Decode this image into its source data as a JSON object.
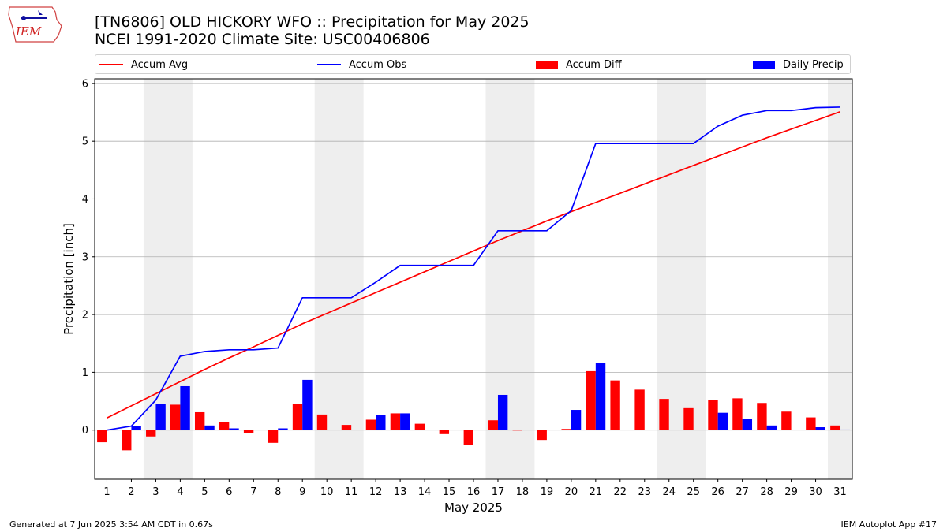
{
  "title": "[TN6806] OLD HICKORY WFO :: Precipitation for May 2025",
  "subtitle": "NCEI 1991-2020 Climate Site: USC00406806",
  "logo_text": "IEM",
  "footer_left": "Generated at 7 Jun 2025 3:54 AM CDT in 0.67s",
  "footer_right": "IEM Autoplot App #17",
  "legend": [
    {
      "label": "Accum Avg",
      "kind": "line",
      "color": "#ff0000"
    },
    {
      "label": "Accum Obs",
      "kind": "line",
      "color": "#0000ff"
    },
    {
      "label": "Accum Diff",
      "kind": "patch",
      "color": "#ff0000"
    },
    {
      "label": "Daily Precip",
      "kind": "patch",
      "color": "#0000ff"
    }
  ],
  "chart_data": {
    "type": "bar",
    "xlabel": "May 2025",
    "ylabel": "Precipitation [inch]",
    "xlim": [
      0.5,
      31.5
    ],
    "ylim": [
      -0.85,
      6.08
    ],
    "xticks": [
      1,
      2,
      3,
      4,
      5,
      6,
      7,
      8,
      9,
      10,
      11,
      12,
      13,
      14,
      15,
      16,
      17,
      18,
      19,
      20,
      21,
      22,
      23,
      24,
      25,
      26,
      27,
      28,
      29,
      30,
      31
    ],
    "yticks": [
      0,
      1,
      2,
      3,
      4,
      5,
      6
    ],
    "grid": "horizontal",
    "legend_position": "top",
    "weekend_shading": [
      [
        2.5,
        4.5
      ],
      [
        9.5,
        11.5
      ],
      [
        16.5,
        18.5
      ],
      [
        23.5,
        25.5
      ],
      [
        30.5,
        31.5
      ]
    ],
    "days": [
      1,
      2,
      3,
      4,
      5,
      6,
      7,
      8,
      9,
      10,
      11,
      12,
      13,
      14,
      15,
      16,
      17,
      18,
      19,
      20,
      21,
      22,
      23,
      24,
      25,
      26,
      27,
      28,
      29,
      30,
      31
    ],
    "series": [
      {
        "name": "Accum Avg",
        "type": "line",
        "color": "#ff0000",
        "values": [
          0.21,
          0.42,
          0.63,
          0.84,
          1.05,
          1.25,
          1.44,
          1.64,
          1.84,
          2.02,
          2.2,
          2.38,
          2.56,
          2.74,
          2.92,
          3.1,
          3.28,
          3.45,
          3.62,
          3.78,
          3.94,
          4.1,
          4.26,
          4.42,
          4.58,
          4.74,
          4.9,
          5.06,
          5.21,
          5.36,
          5.51
        ]
      },
      {
        "name": "Accum Obs",
        "type": "line",
        "color": "#0000ff",
        "values": [
          0.0,
          0.07,
          0.52,
          1.28,
          1.36,
          1.39,
          1.39,
          1.42,
          2.29,
          2.29,
          2.29,
          2.56,
          2.85,
          2.85,
          2.85,
          2.85,
          3.45,
          3.45,
          3.45,
          3.8,
          4.96,
          4.96,
          4.96,
          4.96,
          4.96,
          5.26,
          5.45,
          5.53,
          5.53,
          5.58,
          5.59
        ]
      },
      {
        "name": "Accum Diff",
        "type": "bar",
        "color": "#ff0000",
        "values": [
          -0.21,
          -0.35,
          -0.11,
          0.44,
          0.31,
          0.14,
          -0.05,
          -0.22,
          0.45,
          0.27,
          0.09,
          0.18,
          0.29,
          0.11,
          -0.07,
          -0.25,
          0.17,
          0.0,
          -0.17,
          0.02,
          1.02,
          0.86,
          0.7,
          0.54,
          0.38,
          0.52,
          0.55,
          0.47,
          0.32,
          0.22,
          0.08
        ]
      },
      {
        "name": "Daily Precip",
        "type": "bar",
        "color": "#0000ff",
        "values": [
          0.0,
          0.07,
          0.45,
          0.76,
          0.08,
          0.03,
          0.0,
          0.03,
          0.87,
          0.0,
          0.0,
          0.26,
          0.29,
          0.0,
          0.0,
          0.0,
          0.61,
          0.0,
          0.0,
          0.35,
          1.16,
          0.0,
          0.0,
          0.0,
          0.0,
          0.3,
          0.19,
          0.08,
          0.0,
          0.05,
          0.01
        ]
      }
    ]
  }
}
